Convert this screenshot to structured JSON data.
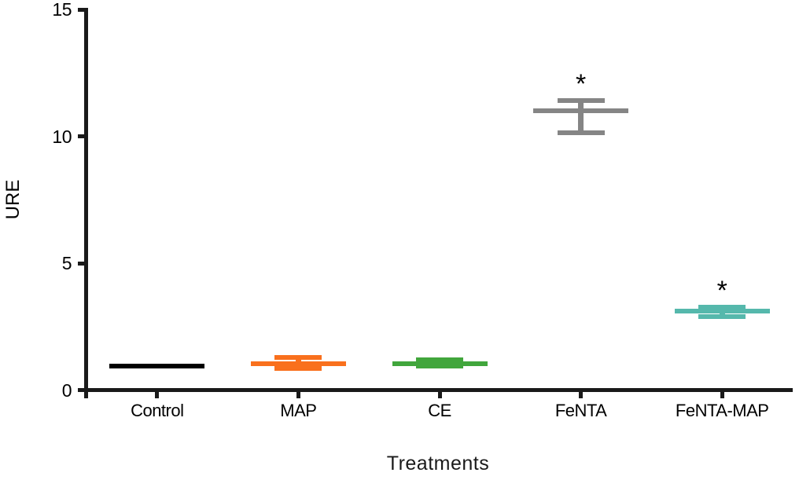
{
  "chart_data": {
    "type": "errorbar",
    "title": "",
    "xlabel": "Treatments",
    "ylabel": "URE",
    "ylim": [
      0,
      15
    ],
    "yticks": [
      0,
      5,
      10,
      15
    ],
    "ytick_labels": [
      "0",
      "5",
      "10",
      "15"
    ],
    "categories": [
      "Control",
      "MAP",
      "CE",
      "FeNTA",
      "FeNTA-MAP"
    ],
    "grid": "off",
    "legend": "none",
    "axis_color": "#1a1a1a",
    "background_color": "#ffffff",
    "series": [
      {
        "name": "Control",
        "mean": 0.95,
        "upper": 0.95,
        "lower": 0.95,
        "color": "#000000",
        "significance": ""
      },
      {
        "name": "MAP",
        "mean": 1.05,
        "upper": 1.28,
        "lower": 0.85,
        "color": "#F9701D",
        "significance": ""
      },
      {
        "name": "CE",
        "mean": 1.05,
        "upper": 1.18,
        "lower": 0.93,
        "color": "#41A63C",
        "significance": ""
      },
      {
        "name": "FeNTA",
        "mean": 11.0,
        "upper": 11.4,
        "lower": 10.15,
        "color": "#858585",
        "significance": "*"
      },
      {
        "name": "FeNTA-MAP",
        "mean": 3.1,
        "upper": 3.28,
        "lower": 2.88,
        "color": "#55B8AC",
        "significance": "*"
      }
    ]
  }
}
